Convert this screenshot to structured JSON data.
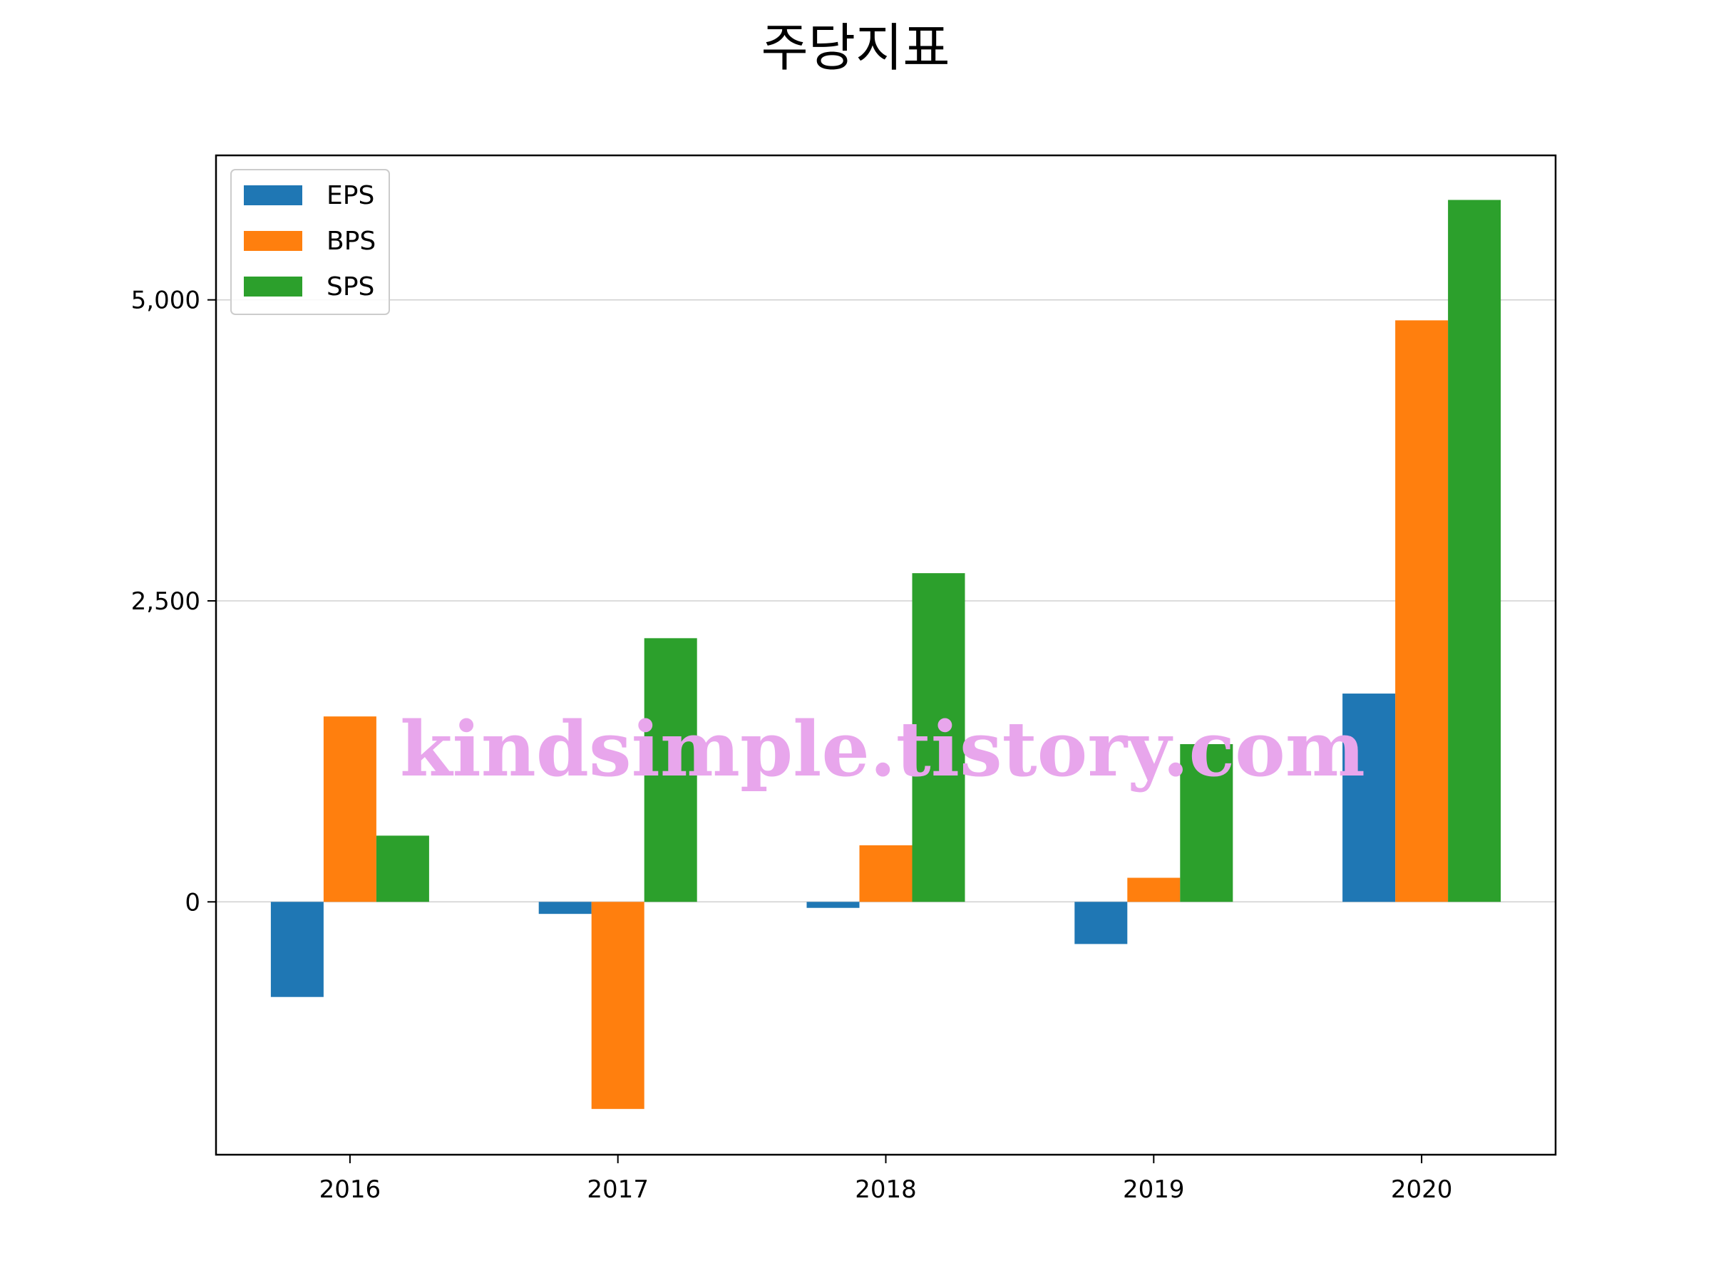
{
  "chart_data": {
    "type": "bar",
    "title": "주당지표",
    "xlabel": "",
    "ylabel": "",
    "categories": [
      "2016",
      "2017",
      "2018",
      "2019",
      "2020"
    ],
    "series": [
      {
        "name": "EPS",
        "color": "#1f77b4",
        "values": [
          -790,
          -100,
          -50,
          -350,
          1730
        ]
      },
      {
        "name": "BPS",
        "color": "#ff7f0e",
        "values": [
          1540,
          -1720,
          470,
          200,
          4830
        ]
      },
      {
        "name": "SPS",
        "color": "#2ca02c",
        "values": [
          550,
          2190,
          2730,
          1310,
          5830
        ]
      }
    ],
    "yticks": [
      0,
      2500,
      5000
    ],
    "ytick_labels": [
      "0",
      "2,500",
      "5,000"
    ],
    "ylim": [
      -2100,
      6200
    ],
    "grid": "horizontal",
    "legend_position": "top-left"
  },
  "watermark": "kindsimple.tistory.com"
}
